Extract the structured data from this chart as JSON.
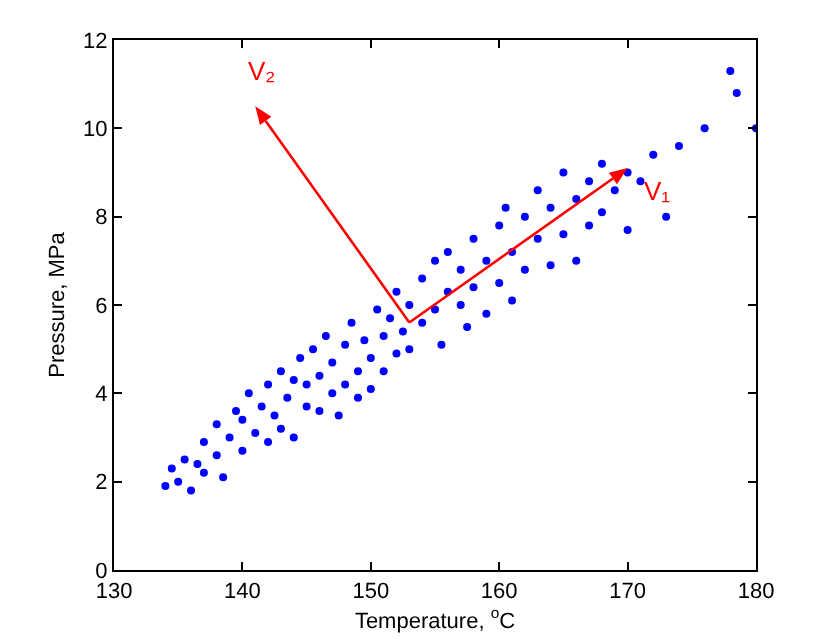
{
  "chart_data": {
    "type": "scatter",
    "xlabel": "Temperature, $^{o}$C",
    "ylabel": "Pressure, MPa",
    "xlim": [
      130,
      180
    ],
    "xticks": [
      130,
      140,
      150,
      160,
      170,
      180
    ],
    "ylim": [
      0,
      12
    ],
    "yticks": [
      0,
      2,
      4,
      6,
      8,
      10,
      12
    ],
    "grid": false,
    "marker": "circle",
    "series": [
      {
        "type": "scatter",
        "color": "#0000ff",
        "x": [
          134,
          134.5,
          135,
          135.5,
          136,
          136.5,
          137,
          137,
          138,
          138,
          138.5,
          139,
          139.5,
          140,
          140,
          140.5,
          141,
          141.5,
          142,
          142,
          142.5,
          143,
          143,
          143.5,
          144,
          144,
          144.5,
          145,
          145,
          145.5,
          146,
          146,
          146.5,
          147,
          147,
          147.5,
          148,
          148,
          148.5,
          149,
          149,
          149.5,
          150,
          150,
          150.5,
          151,
          151,
          151.5,
          152,
          152,
          152.5,
          153,
          153,
          154,
          154,
          155,
          155,
          155.5,
          156,
          156,
          157,
          157,
          157.5,
          158,
          158,
          159,
          159,
          160,
          160,
          160.5,
          161,
          161,
          162,
          162,
          163,
          163,
          164,
          164,
          165,
          165,
          166,
          166,
          167,
          167,
          168,
          168,
          169,
          170,
          170,
          171,
          172,
          173,
          174,
          176,
          178,
          178.5,
          180
        ],
        "values": [
          1.9,
          2.3,
          2.0,
          2.5,
          1.8,
          2.4,
          2.2,
          2.9,
          2.6,
          3.3,
          2.1,
          3.0,
          3.6,
          2.7,
          3.4,
          4.0,
          3.1,
          3.7,
          2.9,
          4.2,
          3.5,
          4.5,
          3.2,
          3.9,
          4.3,
          3.0,
          4.8,
          3.7,
          4.2,
          5.0,
          3.6,
          4.4,
          5.3,
          4.0,
          4.7,
          3.5,
          5.1,
          4.2,
          5.6,
          4.5,
          3.9,
          5.2,
          4.8,
          4.1,
          5.9,
          5.3,
          4.5,
          5.7,
          6.3,
          4.9,
          5.4,
          6.0,
          5.0,
          6.6,
          5.6,
          5.9,
          7.0,
          5.1,
          6.3,
          7.2,
          6.0,
          6.8,
          5.5,
          7.5,
          6.4,
          7.0,
          5.8,
          7.8,
          6.5,
          8.2,
          7.2,
          6.1,
          8.0,
          6.8,
          7.5,
          8.6,
          6.9,
          8.2,
          7.6,
          9.0,
          8.4,
          7.0,
          8.8,
          7.8,
          9.2,
          8.1,
          8.6,
          9.0,
          7.7,
          8.8,
          9.4,
          8.0,
          9.6,
          10.0,
          11.3,
          10.8,
          10.0
        ]
      }
    ],
    "annotations": [
      {
        "text": "V₁",
        "x": 170,
        "y": 9.1
      },
      "V₂"
    ]
  }
}
